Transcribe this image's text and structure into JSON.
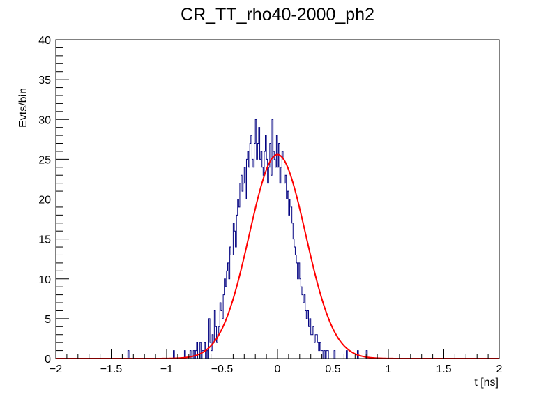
{
  "chart_data": {
    "type": "histogram",
    "title": "CR_TT_rho40-2000_ph2",
    "xlabel": "t [ns]",
    "ylabel": "Evts/bin",
    "xlim": [
      -2,
      2
    ],
    "ylim": [
      0,
      40
    ],
    "x_ticks": [
      -2,
      -1.5,
      -1,
      -0.5,
      0,
      0.5,
      1,
      1.5,
      2
    ],
    "x_tick_labels": [
      "−2",
      "−1.5",
      "−1",
      "−0.5",
      "0",
      "0.5",
      "1",
      "1.5",
      "2"
    ],
    "y_ticks": [
      0,
      5,
      10,
      15,
      20,
      25,
      30,
      35,
      40
    ],
    "y_tick_labels": [
      "0",
      "5",
      "10",
      "15",
      "20",
      "25",
      "30",
      "35",
      "40"
    ],
    "bins": {
      "low": -2,
      "high": 2,
      "nbins": 400,
      "counts_from_x_minus_1_35": [
        1,
        0,
        0,
        0,
        0,
        0,
        0,
        0,
        0,
        0,
        0,
        0,
        0,
        0,
        0,
        0,
        0,
        0,
        0,
        0,
        0,
        0,
        0,
        0,
        0,
        0,
        0,
        0,
        0,
        0,
        0,
        0,
        0,
        0,
        0,
        0,
        0,
        0,
        0,
        0,
        0,
        1,
        0,
        0,
        0,
        0,
        0,
        0,
        0,
        0,
        0,
        1,
        0,
        0,
        0,
        0,
        1,
        0,
        0,
        1,
        0,
        1,
        2,
        0,
        0,
        2,
        0,
        1,
        1,
        2,
        0,
        1,
        0,
        5,
        2,
        1,
        3,
        2,
        6,
        4,
        2,
        3,
        4,
        7,
        6,
        5,
        8,
        10,
        9,
        11,
        12,
        10,
        14,
        13,
        13,
        17,
        16,
        14,
        18,
        20,
        19,
        22,
        23,
        21,
        22,
        24,
        20,
        25,
        26,
        24,
        27,
        28,
        25,
        24,
        27,
        30,
        25,
        27,
        29,
        25,
        26,
        24,
        23,
        26,
        28,
        25,
        22,
        24,
        27,
        23,
        30,
        26,
        25,
        24,
        28,
        24,
        27,
        22,
        24,
        26,
        25,
        22,
        23,
        20,
        21,
        18,
        20,
        19,
        17,
        15,
        14,
        13,
        12,
        10,
        12,
        10,
        9,
        8,
        7,
        8,
        6,
        5,
        6,
        4,
        5,
        3,
        3,
        4,
        2,
        3,
        3,
        2,
        1,
        2,
        1,
        1,
        0,
        1,
        0,
        1,
        1,
        0,
        0,
        0,
        0,
        0,
        1,
        0,
        0,
        0,
        0,
        0,
        0,
        0,
        0,
        0,
        0,
        1,
        0,
        0,
        0,
        0,
        0,
        0,
        0,
        0,
        0,
        1,
        0,
        0,
        0,
        0,
        0,
        0,
        0,
        1
      ]
    },
    "series": [
      {
        "name": "histogram",
        "color": "#000080"
      },
      {
        "name": "gaussian fit",
        "color": "#ff0000",
        "amplitude": 25.6,
        "mean": 0.0,
        "sigma": 0.255
      }
    ],
    "grid": false,
    "legend": "none"
  }
}
